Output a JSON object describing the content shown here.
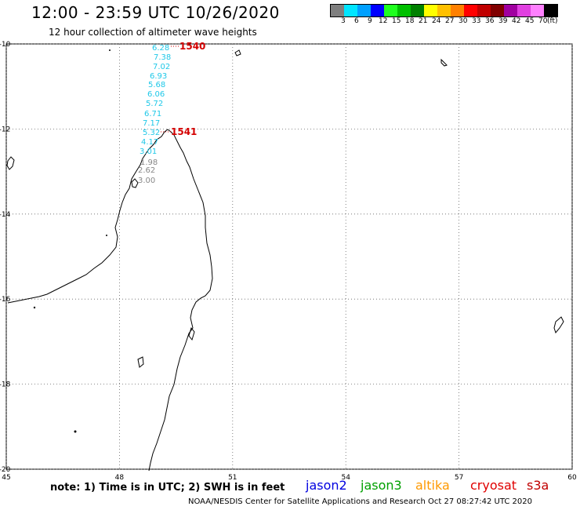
{
  "title": "12:00 - 23:59 UTC 10/26/2020",
  "subtitle": "12 hour collection of altimeter wave heights",
  "colorscale": {
    "colors": [
      "#7f7f7f",
      "#00e5ff",
      "#00a0ff",
      "#0000ff",
      "#1fff1f",
      "#00c000",
      "#008000",
      "#ffff00",
      "#ffc000",
      "#ff8000",
      "#ff0000",
      "#c00000",
      "#800000",
      "#a000a0",
      "#e040e0",
      "#ff80ff",
      "#000000"
    ],
    "labels": [
      "3",
      "6",
      "9",
      "12",
      "15",
      "18",
      "21",
      "24",
      "27",
      "30",
      "33",
      "36",
      "39",
      "42",
      "45",
      "70",
      "(ft)"
    ]
  },
  "axes": {
    "lat_ticks": [
      "-10",
      "-12",
      "-14",
      "-16",
      "-18",
      "-20"
    ],
    "lon_ticks": [
      "45",
      "48",
      "51",
      "54",
      "57",
      "60"
    ],
    "lat_range": [
      -20,
      -10
    ],
    "lon_range": [
      45,
      60
    ]
  },
  "passes": [
    {
      "time": "1540",
      "color": "#d40000"
    },
    {
      "time": "1541",
      "color": "#d40000"
    }
  ],
  "swh_track": {
    "values": [
      "6.28",
      "7.38",
      "7.02",
      "6.93",
      "5.68",
      "6.06",
      "5.72",
      "6.71",
      "7.17",
      "5.32",
      "4.17",
      "3.01",
      "1.98",
      "2.62",
      "3.00"
    ],
    "colors": [
      "#1fc8e8",
      "#1fc8e8",
      "#1fc8e8",
      "#1fc8e8",
      "#1fc8e8",
      "#1fc8e8",
      "#1fc8e8",
      "#1fc8e8",
      "#1fc8e8",
      "#1fc8e8",
      "#1fc8e8",
      "#1fc8e8",
      "#888888",
      "#888888",
      "#888888"
    ]
  },
  "note": "note:  1) Time is in UTC;  2) SWH is in feet",
  "satellites": [
    {
      "name": "jason2",
      "color": "#0000e0"
    },
    {
      "name": "jason3",
      "color": "#00a000"
    },
    {
      "name": "altika",
      "color": "#ff9900"
    },
    {
      "name": "cryosat",
      "color": "#e00000"
    },
    {
      "name": "s3a",
      "color": "#c00000"
    }
  ],
  "credit": "NOAA/NESDIS Center for Satellite Applications and Research    Oct 27 08:27:42 UTC 2020"
}
